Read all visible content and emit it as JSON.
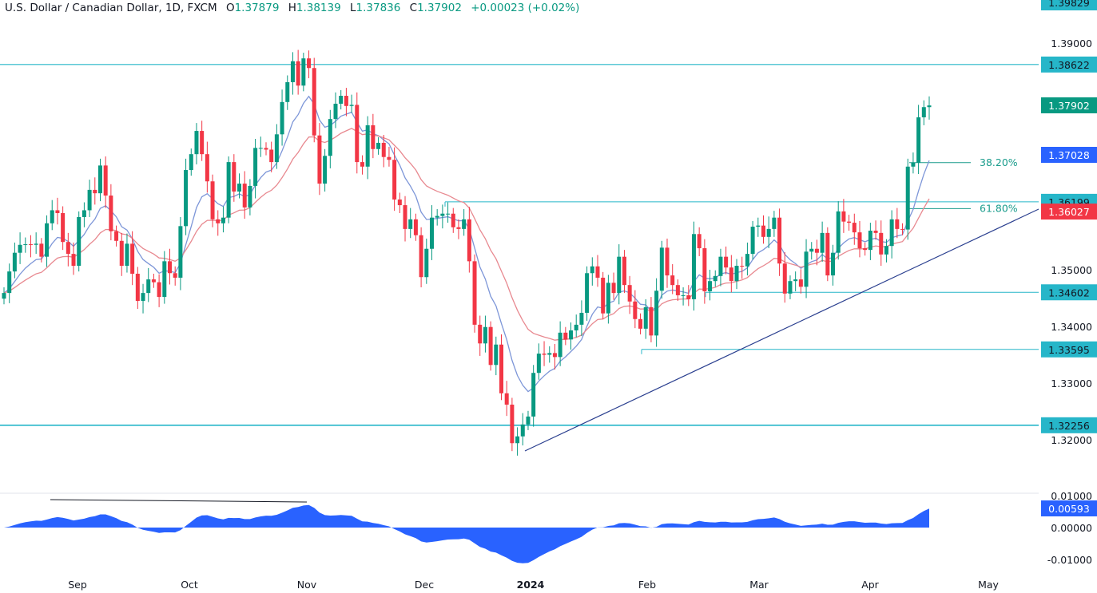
{
  "header": {
    "symbol": "U.S. Dollar / Canadian Dollar, 1D, FXCM",
    "open_key": "O",
    "open": "1.37879",
    "high_key": "H",
    "high": "1.38139",
    "low_key": "L",
    "low": "1.37836",
    "close_key": "C",
    "close": "1.37902",
    "change": "+0.00023 (+0.02%)"
  },
  "colors": {
    "up": "#089981",
    "down": "#f23645",
    "level": "#26b6c9",
    "trendline": "#2a3f8f",
    "ma_fast": "#7d96d8",
    "ma_slow": "#e88990",
    "oscillator": "#2962ff"
  },
  "chart_data": [
    {
      "type": "candlestick",
      "title": "U.S. Dollar / Canadian Dollar, 1D, FXCM",
      "ylim": [
        1.316,
        1.3985
      ],
      "y_ticks": [
        "1.39000",
        "1.35000",
        "1.34000",
        "1.33000",
        "1.32000"
      ],
      "x_ticks": [
        "Sep",
        "Oct",
        "Nov",
        "Dec",
        "2024",
        "Feb",
        "Mar",
        "Apr",
        "May"
      ],
      "grid": false,
      "close": [
        1.3459,
        1.3497,
        1.353,
        1.3544,
        1.3545,
        1.3544,
        1.3546,
        1.3523,
        1.3582,
        1.3605,
        1.36,
        1.3549,
        1.3528,
        1.3507,
        1.3593,
        1.3605,
        1.3641,
        1.3635,
        1.3684,
        1.3631,
        1.3568,
        1.3551,
        1.3507,
        1.3546,
        1.3493,
        1.3445,
        1.3459,
        1.3483,
        1.3478,
        1.3452,
        1.3515,
        1.3494,
        1.3486,
        1.3577,
        1.3676,
        1.3704,
        1.3745,
        1.3704,
        1.3656,
        1.3589,
        1.3582,
        1.3592,
        1.369,
        1.3638,
        1.3652,
        1.361,
        1.3648,
        1.3715,
        1.3715,
        1.3712,
        1.369,
        1.3739,
        1.3796,
        1.3831,
        1.3868,
        1.3825,
        1.3873,
        1.3856,
        1.3737,
        1.3652,
        1.3701,
        1.3766,
        1.3793,
        1.3807,
        1.3789,
        1.3791,
        1.369,
        1.3682,
        1.3755,
        1.3713,
        1.3724,
        1.3699,
        1.3694,
        1.3624,
        1.3614,
        1.3572,
        1.3589,
        1.3561,
        1.3487,
        1.3537,
        1.3592,
        1.3595,
        1.3599,
        1.3599,
        1.3575,
        1.3572,
        1.3589,
        1.3515,
        1.3403,
        1.337,
        1.3399,
        1.3332,
        1.3368,
        1.3282,
        1.3262,
        1.3194,
        1.3206,
        1.3227,
        1.3241,
        1.3318,
        1.3352,
        1.335,
        1.3353,
        1.3346,
        1.3389,
        1.3377,
        1.3393,
        1.3403,
        1.3424,
        1.3494,
        1.3506,
        1.3486,
        1.3423,
        1.3477,
        1.3459,
        1.3523,
        1.3473,
        1.3444,
        1.3413,
        1.3396,
        1.3434,
        1.3384,
        1.3463,
        1.3539,
        1.349,
        1.3473,
        1.3455,
        1.3455,
        1.3448,
        1.3563,
        1.3538,
        1.3462,
        1.348,
        1.3489,
        1.3523,
        1.3504,
        1.348,
        1.3507,
        1.3506,
        1.3528,
        1.3576,
        1.3578,
        1.3558,
        1.3572,
        1.3592,
        1.3511,
        1.3458,
        1.348,
        1.3483,
        1.347,
        1.3532,
        1.3537,
        1.353,
        1.3565,
        1.349,
        1.353,
        1.3603,
        1.3585,
        1.3583,
        1.3566,
        1.3538,
        1.3535,
        1.3569,
        1.3565,
        1.3527,
        1.3542,
        1.3589,
        1.3572,
        1.3571,
        1.3682,
        1.3689,
        1.3769,
        1.3787,
        1.379
      ],
      "horizontal_levels": [
        {
          "price": 1.38622,
          "label": "1.38622"
        },
        {
          "price": 1.36199,
          "label": "1.36199"
        },
        {
          "price": 1.34602,
          "label": "1.34602"
        },
        {
          "price": 1.33595,
          "label": "1.33595"
        },
        {
          "price": 1.32256,
          "label": "1.32256"
        }
      ],
      "fib_levels": [
        {
          "label": "38.20%",
          "price": 1.3689
        },
        {
          "label": "61.80%",
          "price": 1.3608
        }
      ],
      "price_labels": {
        "top": "1.39829",
        "last": "1.37902",
        "ma_fast": "1.37028",
        "ma_slow": "1.36027"
      }
    },
    {
      "type": "area",
      "ylim": [
        -0.013,
        0.011
      ],
      "y_ticks": [
        "0.01000",
        "0.00000",
        "-0.01000"
      ],
      "last_value": "0.00593"
    }
  ]
}
